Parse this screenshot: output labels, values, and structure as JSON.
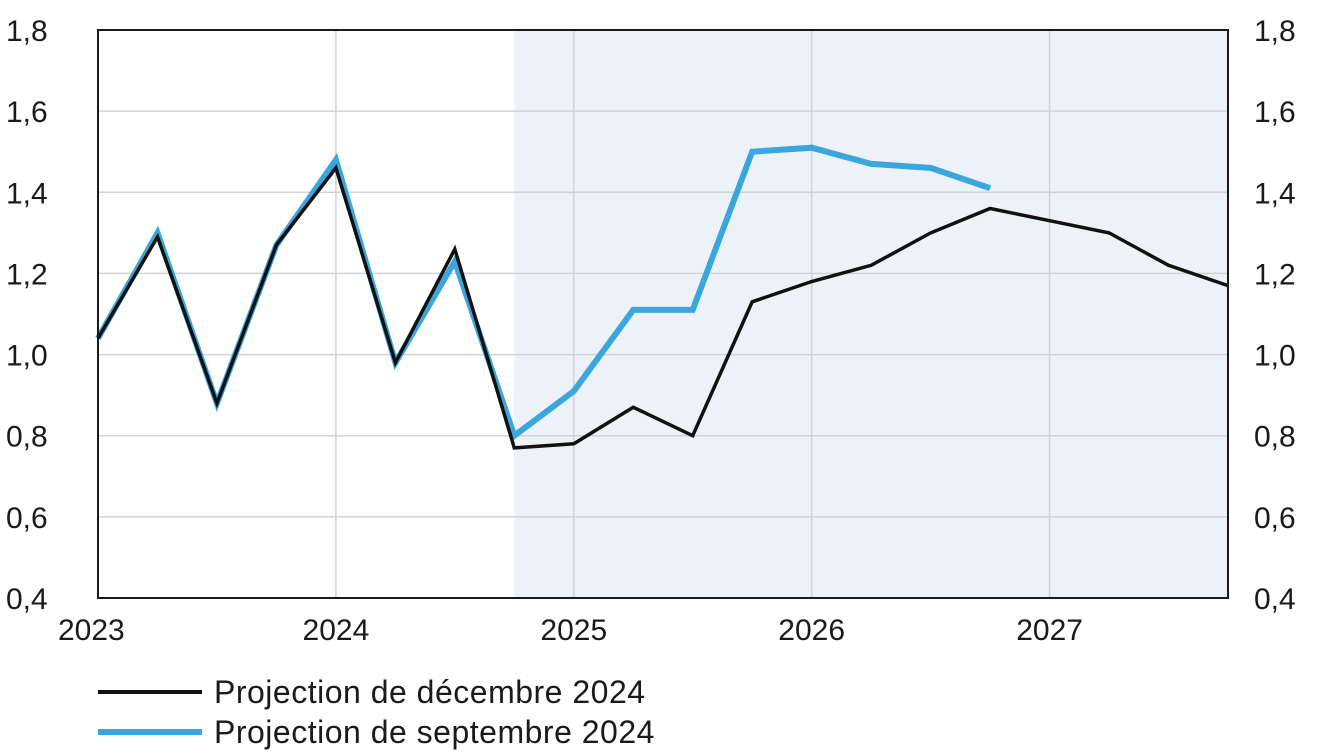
{
  "chart_data": {
    "type": "line",
    "x_axis": {
      "tick_labels": [
        "2023",
        "2024",
        "2025",
        "2026",
        "2027"
      ],
      "range_years": [
        2023.0,
        2027.75
      ]
    },
    "y_axis": {
      "range": [
        0.4,
        1.8
      ],
      "tick_values": [
        0.4,
        0.6,
        0.8,
        1.0,
        1.2,
        1.4,
        1.6,
        1.8
      ],
      "tick_labels": [
        "0,4",
        "0,6",
        "0,8",
        "1,0",
        "1,2",
        "1,4",
        "1,6",
        "1,8"
      ],
      "shown_on": "left and right"
    },
    "projection_shading": {
      "from_year": 2024.75,
      "to_year": 2027.75,
      "color": "#edf2f9"
    },
    "grid": true,
    "legend_placement": "bottom-left",
    "series": [
      {
        "name": "Projection de décembre 2024",
        "color": "#111111",
        "x": [
          2023.0,
          2023.25,
          2023.5,
          2023.75,
          2024.0,
          2024.25,
          2024.5,
          2024.75,
          2025.0,
          2025.25,
          2025.5,
          2025.75,
          2026.0,
          2026.25,
          2026.5,
          2026.75,
          2027.0,
          2027.25,
          2027.5,
          2027.75
        ],
        "values": [
          1.04,
          1.29,
          0.88,
          1.27,
          1.46,
          0.98,
          1.26,
          0.77,
          0.78,
          0.87,
          0.8,
          1.13,
          1.18,
          1.22,
          1.3,
          1.36,
          1.33,
          1.3,
          1.22,
          1.17
        ]
      },
      {
        "name": "Projection de septembre 2024",
        "color": "#3aa6dd",
        "x": [
          2023.0,
          2023.25,
          2023.5,
          2023.75,
          2024.0,
          2024.25,
          2024.5,
          2024.75,
          2025.0,
          2025.25,
          2025.5,
          2025.75,
          2026.0,
          2026.25,
          2026.5,
          2026.75
        ],
        "values": [
          1.04,
          1.3,
          0.88,
          1.27,
          1.48,
          0.98,
          1.23,
          0.8,
          0.91,
          1.11,
          1.11,
          1.5,
          1.51,
          1.47,
          1.46,
          1.41
        ]
      }
    ]
  }
}
